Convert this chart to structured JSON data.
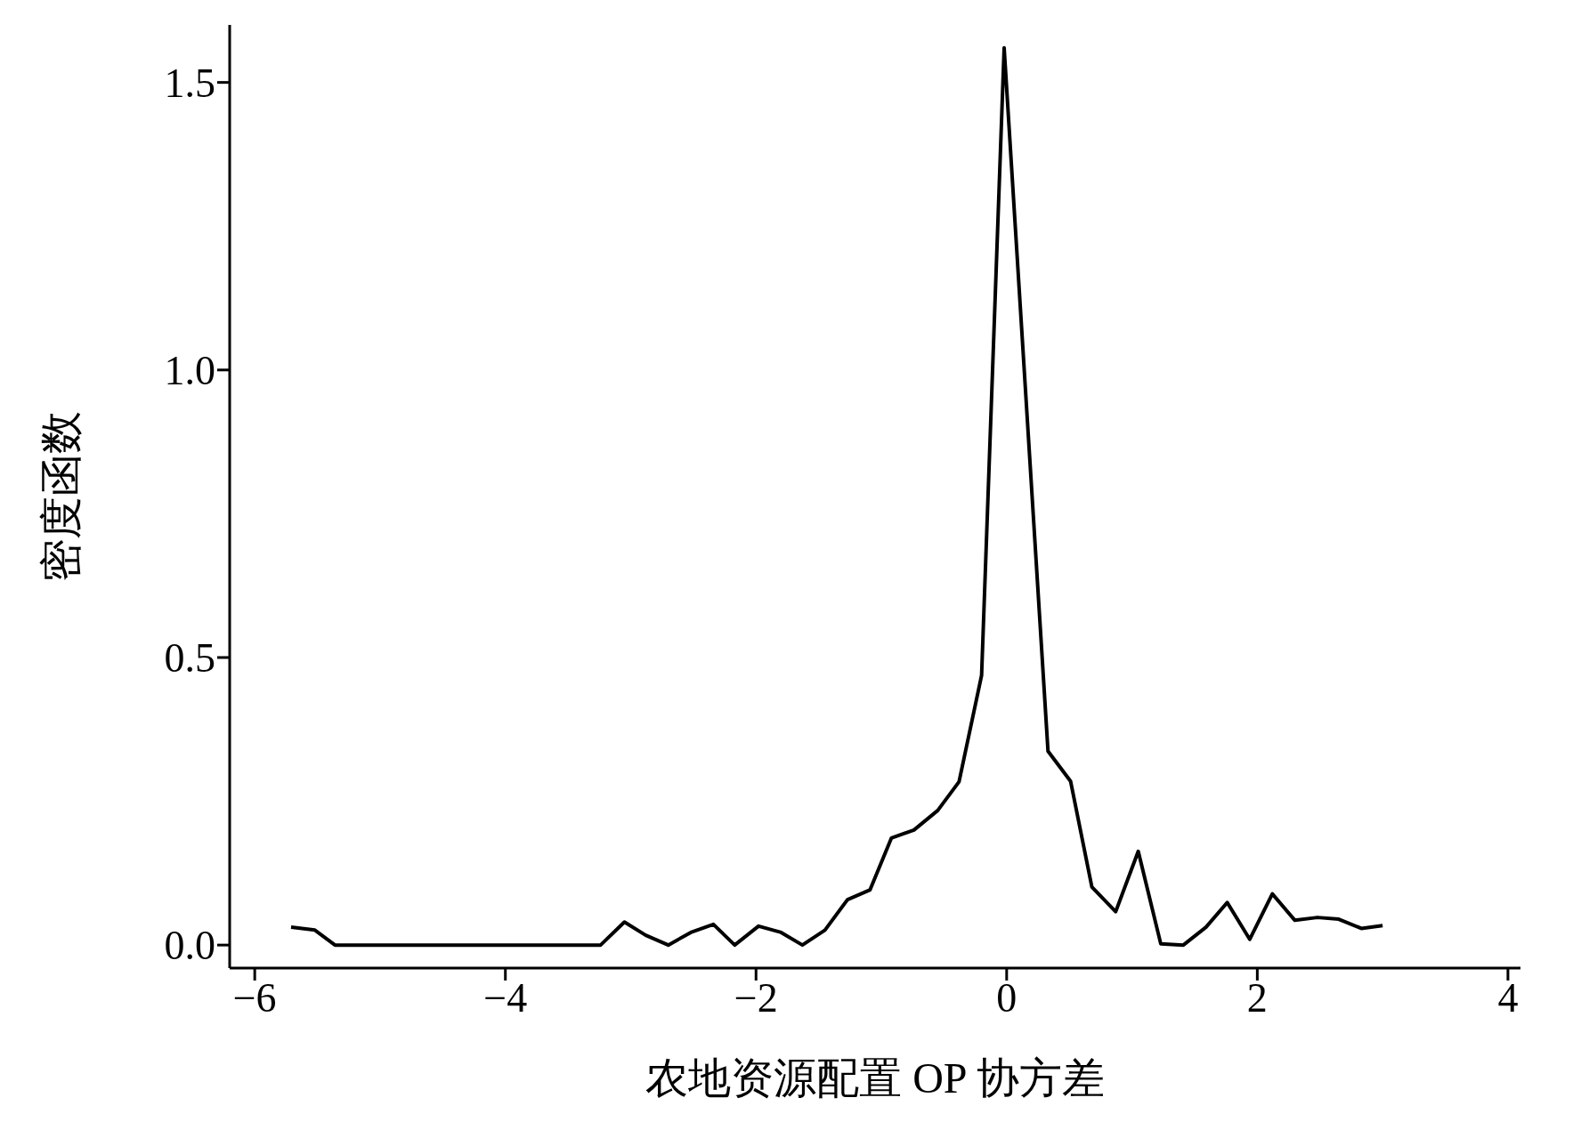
{
  "chart_data": {
    "type": "line",
    "xlabel": "农地资源配置 OP 协方差",
    "ylabel": "密度函数",
    "x": [
      -5.71,
      -5.52,
      -5.36,
      -3.24,
      -3.05,
      -2.88,
      -2.7,
      -2.52,
      -2.34,
      -2.17,
      -1.98,
      -1.8,
      -1.63,
      -1.45,
      -1.27,
      -1.09,
      -0.92,
      -0.74,
      -0.55,
      -0.38,
      -0.2,
      -0.02,
      0.33,
      0.51,
      0.68,
      0.87,
      1.05,
      1.23,
      1.41,
      1.59,
      1.76,
      1.94,
      2.12,
      2.3,
      2.48,
      2.65,
      2.83,
      3.0
    ],
    "series": [
      {
        "color": "#000000",
        "values": [
          0.031,
          0.026,
          0,
          0,
          0.04,
          0.017,
          0,
          0.022,
          0.036,
          0,
          0.033,
          0.022,
          0,
          0.026,
          0.079,
          0.096,
          0.186,
          0.2,
          0.234,
          0.284,
          0.469,
          1.56,
          0.337,
          0.285,
          0.101,
          0.058,
          0.163,
          0.002,
          0,
          0.031,
          0.074,
          0.01,
          0.089,
          0.043,
          0.048,
          0.045,
          0.029,
          0.034
        ]
      }
    ],
    "xlim": [
      -6.2,
      4.1
    ],
    "xticks": [
      -6,
      -4,
      -2,
      0,
      2,
      4
    ],
    "ylim": [
      -0.04,
      1.6
    ],
    "yticks": [
      {
        "value": 0,
        "label": "0.0"
      },
      0.5,
      {
        "value": 1,
        "label": "1.0"
      },
      1.5
    ],
    "grid": false,
    "legend": false,
    "marker": "none",
    "line_style": "solid"
  }
}
